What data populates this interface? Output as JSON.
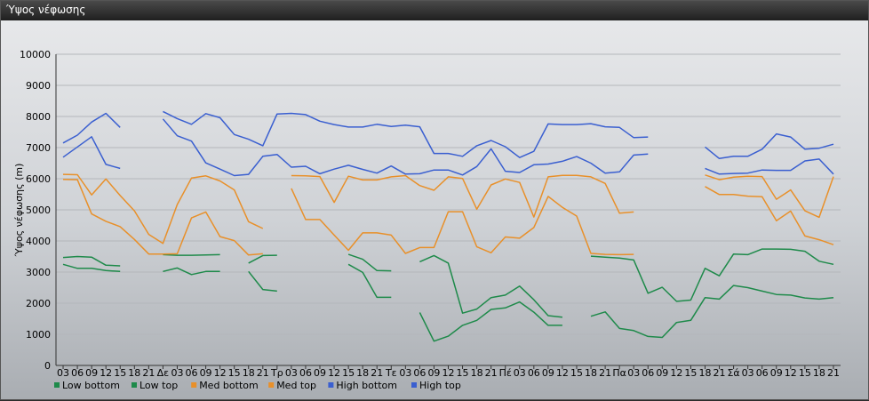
{
  "window": {
    "title": "Ύψος νέφωσης"
  },
  "chart_data": {
    "type": "line",
    "title": "",
    "ylabel": "Ύψος νέφωσης (m)",
    "xlabel": "",
    "ylim": [
      0,
      10000
    ],
    "yticks": [
      0,
      1000,
      2000,
      3000,
      4000,
      5000,
      6000,
      7000,
      8000,
      9000,
      10000
    ],
    "grid": true,
    "legend_position": "bottom",
    "x": [
      "03",
      "06",
      "09",
      "12",
      "15",
      "18",
      "21",
      "Δε",
      "03",
      "06",
      "09",
      "12",
      "15",
      "18",
      "21",
      "Τρ",
      "03",
      "06",
      "09",
      "12",
      "15",
      "18",
      "21",
      "Τε",
      "03",
      "06",
      "09",
      "12",
      "15",
      "18",
      "21",
      "Πέ",
      "03",
      "06",
      "09",
      "12",
      "15",
      "18",
      "21",
      "Πα",
      "03",
      "06",
      "09",
      "12",
      "15",
      "18",
      "21",
      "Σά",
      "03",
      "06",
      "09",
      "12",
      "15",
      "18",
      "21"
    ],
    "series": [
      {
        "name": "Low bottom",
        "color": "#1e8a4a",
        "values": [
          3250,
          3120,
          3120,
          3050,
          3020,
          null,
          null,
          3020,
          3130,
          2920,
          3020,
          3020,
          null,
          3020,
          2440,
          2390,
          null,
          null,
          null,
          null,
          3250,
          2990,
          2190,
          2190,
          null,
          1700,
          780,
          940,
          1290,
          1450,
          1800,
          1850,
          2040,
          1710,
          1290,
          1290,
          null,
          1580,
          1720,
          1190,
          1120,
          930,
          900,
          1380,
          1450,
          2180,
          2130,
          2570,
          2500,
          2390,
          2280,
          2260,
          2170,
          2130,
          2180
        ]
      },
      {
        "name": "Low top",
        "color": "#1e8a4a",
        "values": [
          3470,
          3500,
          3480,
          3220,
          3200,
          null,
          null,
          3560,
          3540,
          3540,
          3550,
          3560,
          null,
          3290,
          3530,
          3540,
          null,
          null,
          null,
          null,
          3570,
          3410,
          3050,
          3040,
          null,
          3330,
          3530,
          3290,
          1680,
          1810,
          2180,
          2260,
          2550,
          2110,
          1600,
          1550,
          null,
          3510,
          3480,
          3450,
          3390,
          2320,
          2510,
          2060,
          2100,
          3120,
          2880,
          3580,
          3560,
          3740,
          3740,
          3730,
          3670,
          3350,
          3250
        ]
      },
      {
        "name": "Med bottom",
        "color": "#e8902a",
        "values": [
          5980,
          5970,
          4870,
          4630,
          4460,
          4050,
          3580,
          3580,
          3590,
          4740,
          4930,
          4140,
          4010,
          3550,
          3590,
          null,
          5690,
          4690,
          4690,
          4190,
          3700,
          4260,
          4260,
          4190,
          3600,
          3790,
          3790,
          4940,
          4940,
          3810,
          3620,
          4130,
          4090,
          4430,
          5430,
          5080,
          4800,
          3600,
          3570,
          3560,
          3570,
          null,
          null,
          null,
          null,
          5750,
          5490,
          5490,
          5440,
          5420,
          4650,
          4960,
          4160,
          4040,
          3880
        ]
      },
      {
        "name": "Med top",
        "color": "#e8902a",
        "values": [
          6140,
          6130,
          5480,
          5990,
          5460,
          4970,
          4210,
          3920,
          5170,
          6020,
          6090,
          5930,
          5640,
          4620,
          4400,
          null,
          6100,
          6090,
          6070,
          5240,
          6080,
          5960,
          5960,
          6060,
          6100,
          5780,
          5630,
          6060,
          6010,
          5020,
          5800,
          5990,
          5880,
          4770,
          6060,
          6110,
          6110,
          6060,
          5850,
          4890,
          4930,
          null,
          null,
          null,
          null,
          6120,
          5970,
          6050,
          6080,
          6070,
          5340,
          5640,
          4970,
          4760,
          6070
        ]
      },
      {
        "name": "High bottom",
        "color": "#3a5fd0",
        "values": [
          6690,
          7020,
          7350,
          6460,
          6330,
          null,
          null,
          7920,
          7380,
          7210,
          6510,
          6310,
          6100,
          6140,
          6720,
          6780,
          6370,
          6400,
          6160,
          6310,
          6430,
          6300,
          6180,
          6410,
          6150,
          6160,
          6280,
          6280,
          6120,
          6390,
          6960,
          6240,
          6200,
          6450,
          6470,
          6560,
          6710,
          6500,
          6180,
          6220,
          6760,
          6790,
          null,
          null,
          null,
          6330,
          6150,
          6170,
          6180,
          6280,
          6270,
          6270,
          6570,
          6630,
          6150
        ]
      },
      {
        "name": "High top",
        "color": "#3a5fd0",
        "values": [
          7150,
          7400,
          7820,
          8100,
          7650,
          null,
          null,
          8160,
          7930,
          7750,
          8090,
          7960,
          7420,
          7270,
          7060,
          8080,
          8100,
          8060,
          7850,
          7740,
          7660,
          7660,
          7750,
          7680,
          7720,
          7670,
          6810,
          6810,
          6720,
          7060,
          7230,
          7030,
          6680,
          6880,
          7760,
          7740,
          7740,
          7770,
          7670,
          7650,
          7320,
          7340,
          null,
          null,
          null,
          7020,
          6650,
          6720,
          6720,
          6950,
          7440,
          7340,
          6950,
          6980,
          7110
        ]
      }
    ]
  }
}
